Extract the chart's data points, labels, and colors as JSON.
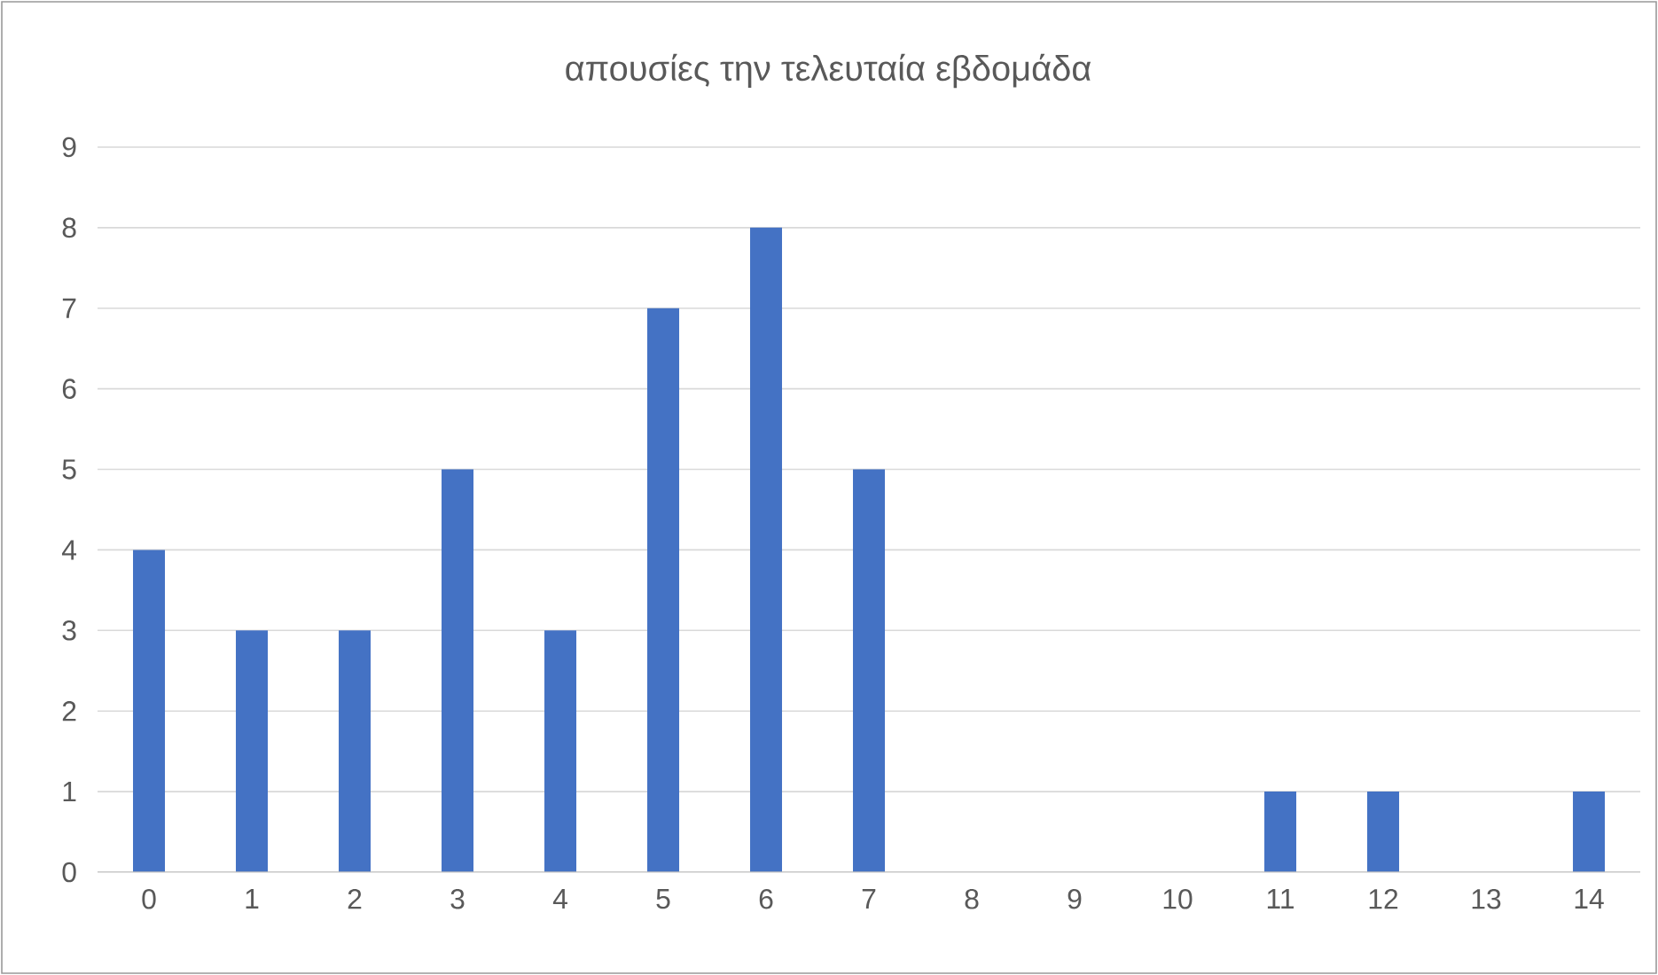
{
  "chart_data": {
    "type": "bar",
    "title": "απουσίες την τελευταία εβδομάδα",
    "categories": [
      "0",
      "1",
      "2",
      "3",
      "4",
      "5",
      "6",
      "7",
      "8",
      "9",
      "10",
      "11",
      "12",
      "13",
      "14"
    ],
    "values": [
      4,
      3,
      3,
      5,
      3,
      7,
      8,
      5,
      0,
      0,
      0,
      1,
      1,
      0,
      1
    ],
    "color": "#4472c4",
    "ylim": [
      0,
      9
    ],
    "yticks": [
      0,
      1,
      2,
      3,
      4,
      5,
      6,
      7,
      8,
      9
    ],
    "grid": "y"
  }
}
